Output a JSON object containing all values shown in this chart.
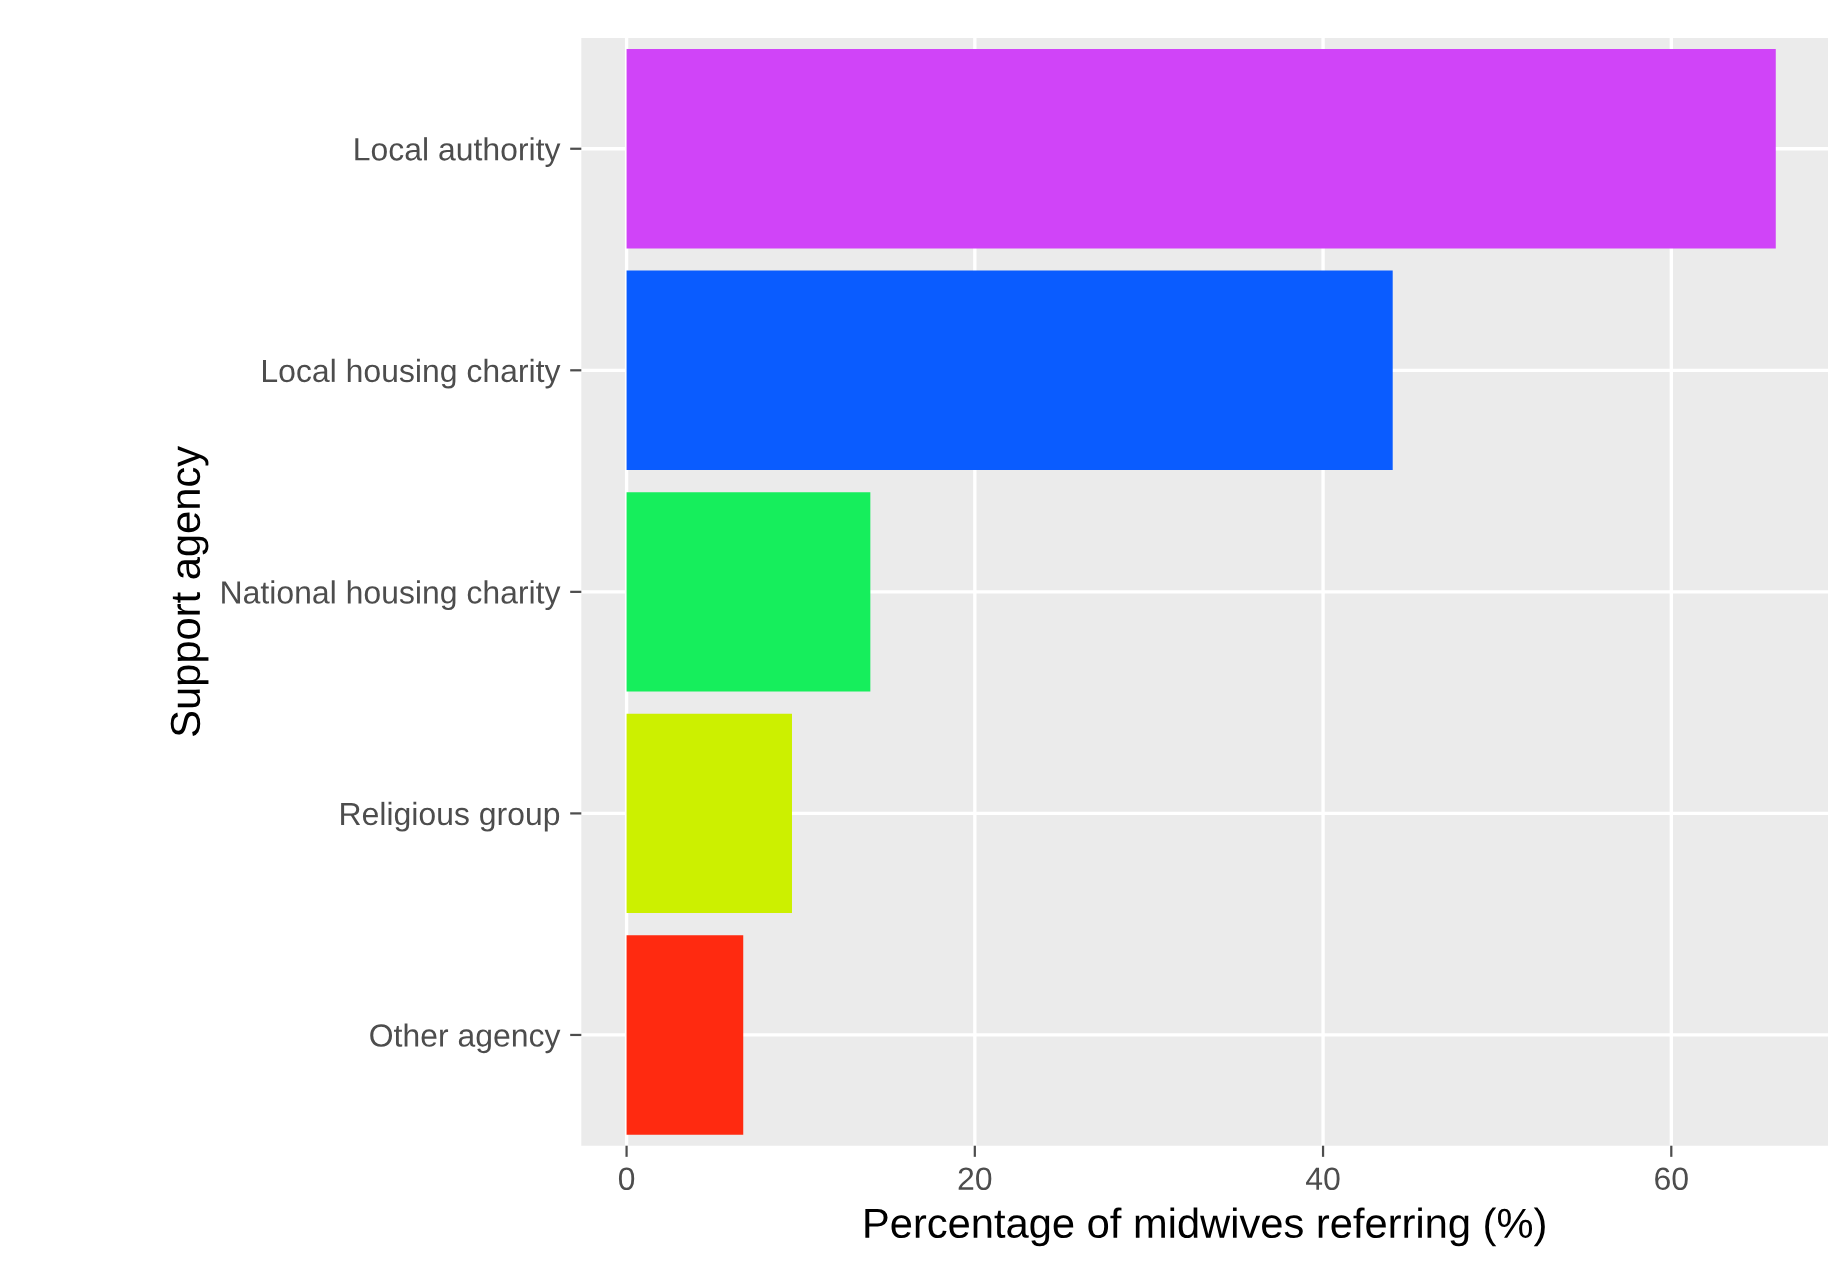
{
  "chart_data": {
    "type": "bar",
    "orientation": "horizontal",
    "xlabel": "Percentage of midwives referring (%)",
    "ylabel": "Support agency",
    "categories": [
      "Local authority",
      "Local housing charity",
      "National housing charity",
      "Religious group",
      "Other agency"
    ],
    "values": [
      66,
      44,
      14,
      9.5,
      6.7
    ],
    "colors": [
      "#d044f8",
      "#0a5cff",
      "#16ee5c",
      "#ccf000",
      "#ff2a10"
    ],
    "xlim": [
      -2.6,
      69
    ],
    "xticks": [
      0,
      20,
      40,
      60
    ],
    "grid": true
  }
}
